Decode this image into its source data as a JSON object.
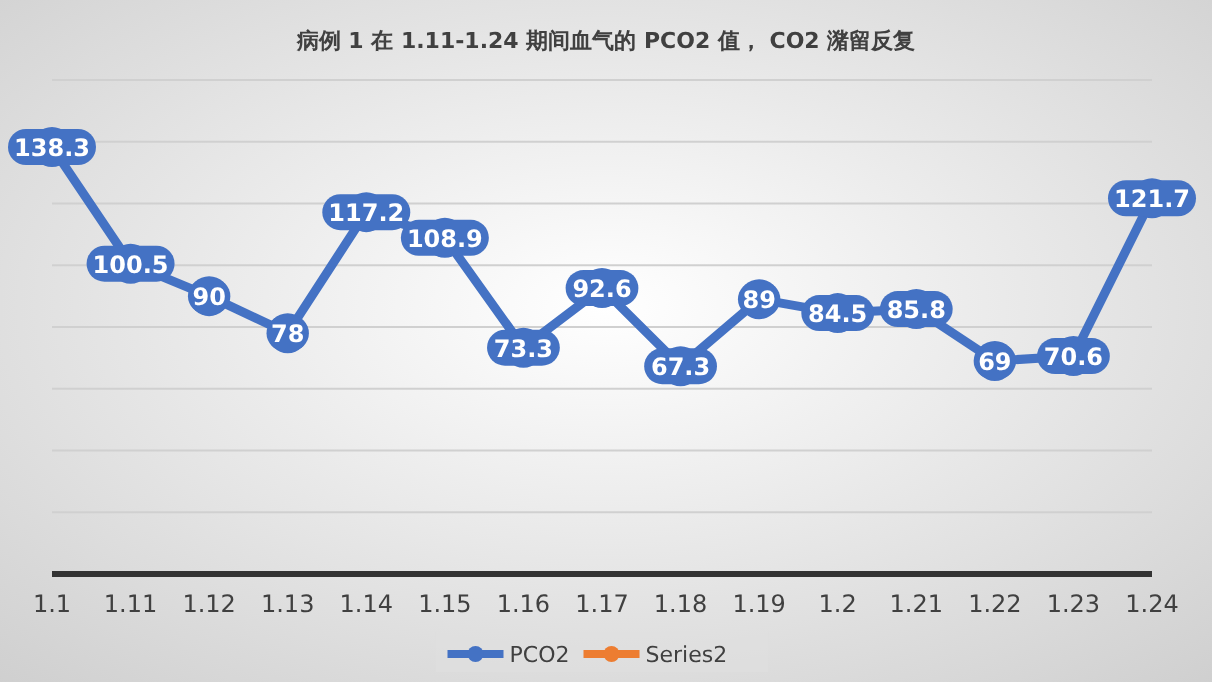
{
  "chart_data": {
    "type": "line",
    "title": "病例 1 在 1.11-1.24 期间血气的 PCO2 值， CO2 潴留反复",
    "categories": [
      "1.1",
      "1.11",
      "1.12",
      "1.13",
      "1.14",
      "1.15",
      "1.16",
      "1.17",
      "1.18",
      "1.19",
      "1.2",
      "1.21",
      "1.22",
      "1.23",
      "1.24"
    ],
    "series": [
      {
        "name": "PCO2",
        "color": "#4472c4",
        "values": [
          138.3,
          100.5,
          90,
          78,
          117.2,
          108.9,
          73.3,
          92.6,
          67.3,
          89,
          84.5,
          85.8,
          69,
          70.6,
          121.7
        ]
      },
      {
        "name": "Series2",
        "color": "#ed7d31",
        "values": [
          null,
          null,
          null,
          null,
          null,
          null,
          null,
          null,
          null,
          null,
          null,
          null,
          null,
          null,
          null
        ]
      }
    ],
    "ylim": [
      0,
      160
    ],
    "yticks": [
      {
        "value": 0,
        "label": null
      },
      {
        "value": 20,
        "label": null
      },
      {
        "value": 40,
        "label": null
      },
      {
        "value": 60,
        "label": null
      },
      {
        "value": 80,
        "label": null
      },
      {
        "value": 100,
        "label": null
      },
      {
        "value": 120,
        "label": null
      },
      {
        "value": 140,
        "label": null
      },
      {
        "value": 160,
        "label": null
      }
    ],
    "tick_labels": "x",
    "grid": "y",
    "legend": "bottom",
    "marker": "circle",
    "line_style": "solid",
    "data_labels": true
  }
}
